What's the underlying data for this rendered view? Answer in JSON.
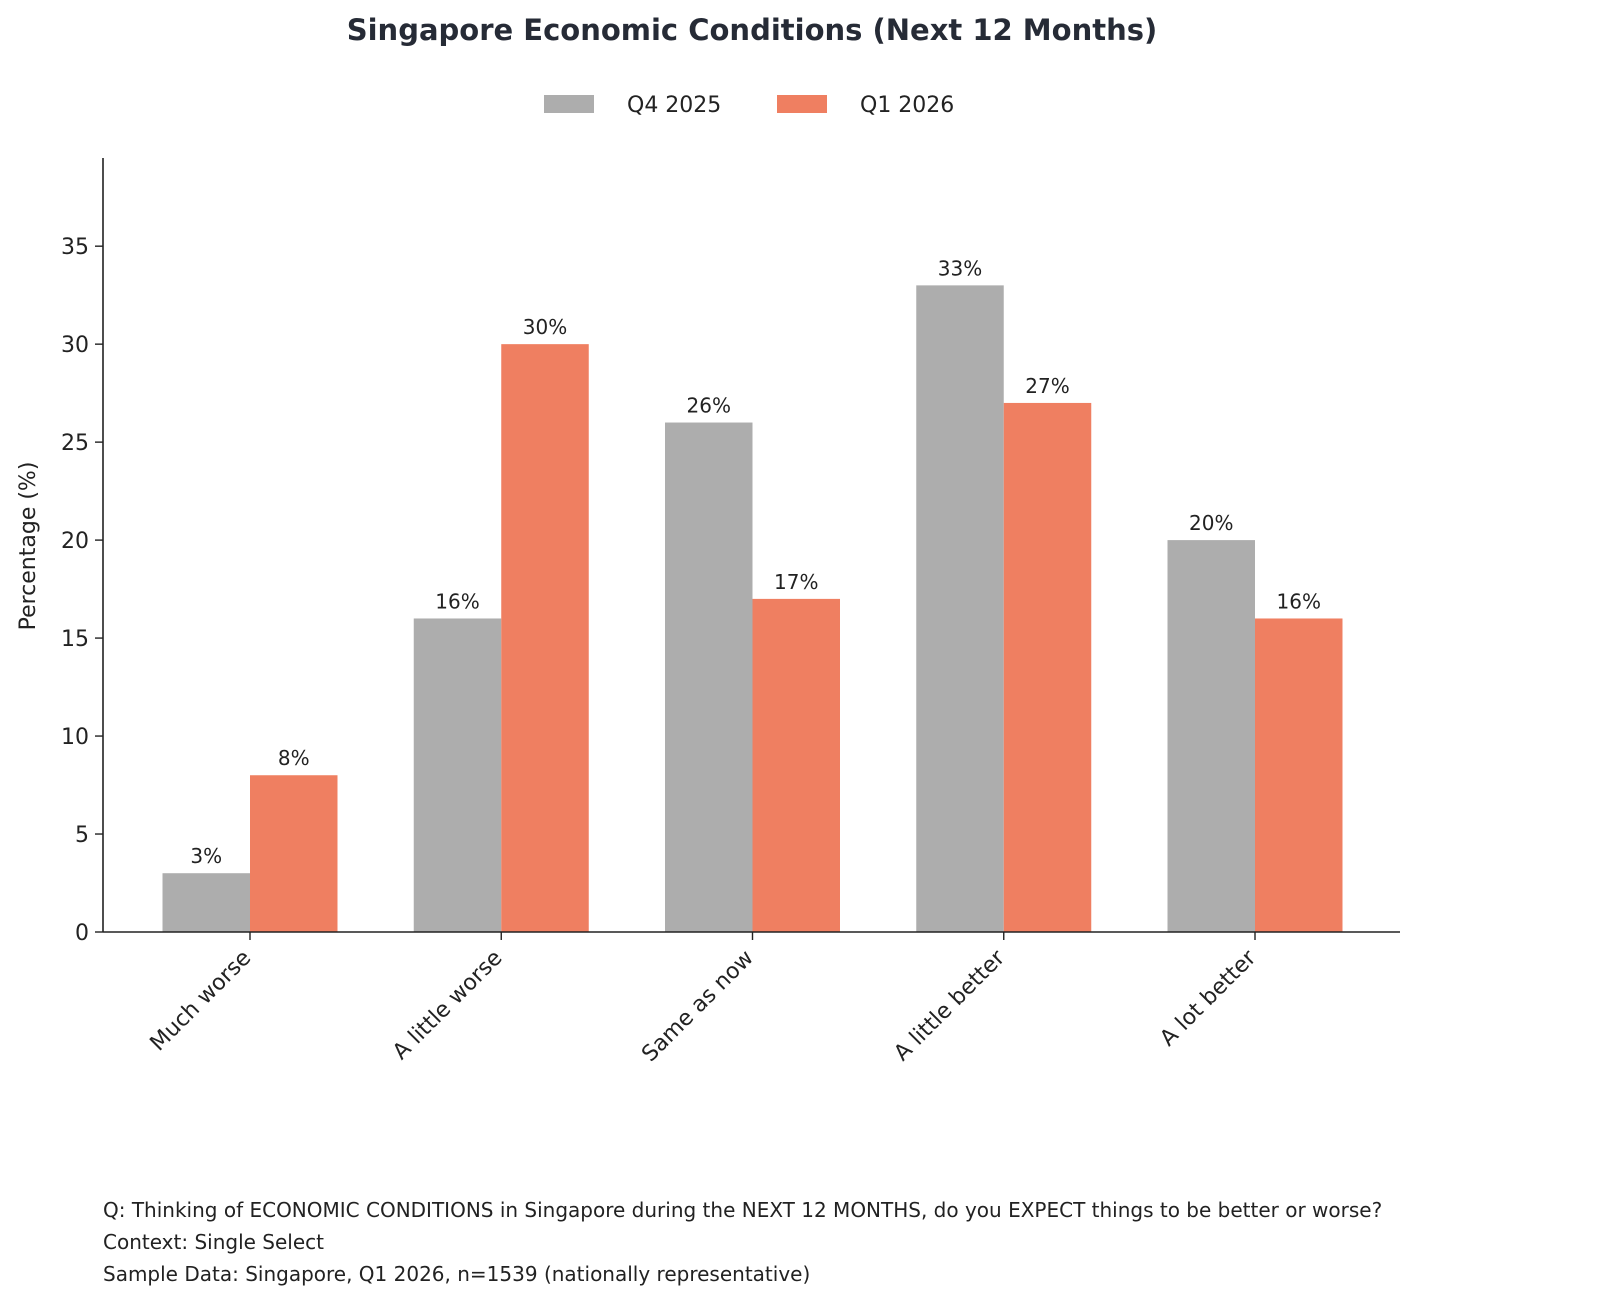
{
  "chart_data": {
    "type": "bar",
    "title": "Singapore Economic Conditions (Next 12 Months)",
    "xlabel": "",
    "ylabel": "Percentage (%)",
    "ylim": [
      0,
      39.5
    ],
    "yticks": [
      0,
      5,
      10,
      15,
      20,
      25,
      30,
      35
    ],
    "grid": false,
    "legend_position": "top-center",
    "categories": [
      "Much worse",
      "A little worse",
      "Same as now",
      "A little better",
      "A lot better"
    ],
    "series": [
      {
        "name": "Q4 2025",
        "color": "#adadad",
        "values": [
          3,
          16,
          26,
          33,
          20
        ],
        "labels": [
          "3%",
          "16%",
          "26%",
          "33%",
          "20%"
        ]
      },
      {
        "name": "Q1 2026",
        "color": "#ef7f61",
        "values": [
          8,
          30,
          17,
          27,
          16
        ],
        "labels": [
          "8%",
          "30%",
          "17%",
          "27%",
          "16%"
        ]
      }
    ]
  },
  "notes": {
    "question": "Q: Thinking of ECONOMIC CONDITIONS in Singapore during the NEXT 12 MONTHS, do you EXPECT things to be better or worse?",
    "context": "Context: Single Select",
    "sample": "Sample Data: Singapore, Q1 2026, n=1539 (nationally representative)"
  }
}
